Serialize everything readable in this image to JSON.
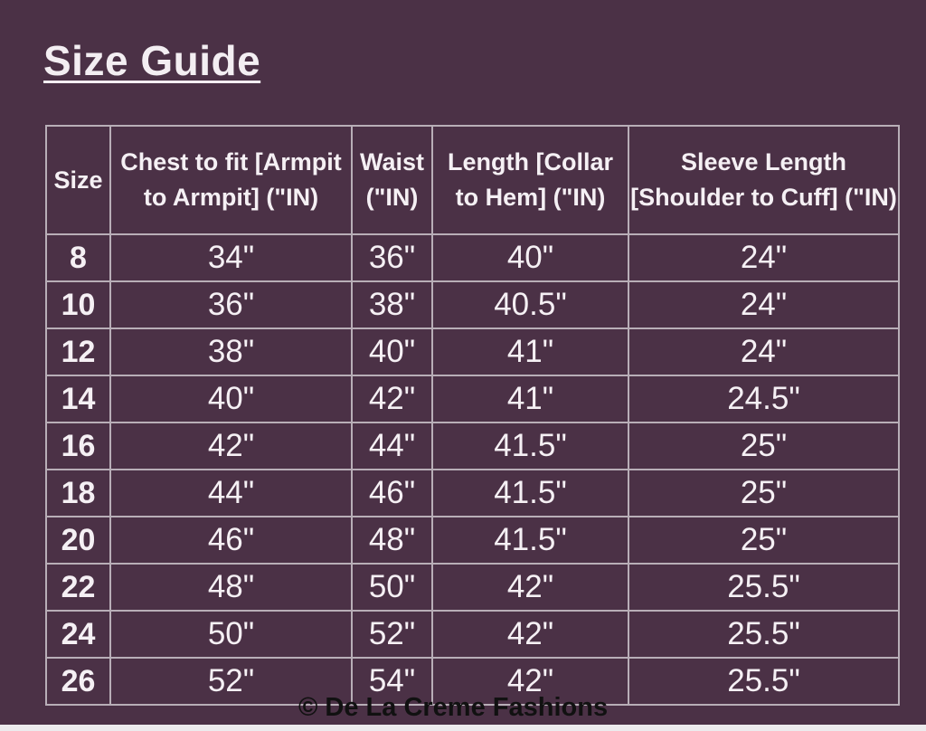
{
  "title": "Size Guide",
  "table": {
    "headers": [
      "Size",
      "Chest to fit [Armpit to Armpit] (\"IN)",
      "Waist (\"IN)",
      "Length [Collar to Hem] (\"IN)",
      "Sleeve Length [Shoulder to Cuff] (\"IN)"
    ],
    "rows": [
      [
        "8",
        "34\"",
        "36\"",
        "40\"",
        "24\""
      ],
      [
        "10",
        "36\"",
        "38\"",
        "40.5\"",
        "24\""
      ],
      [
        "12",
        "38\"",
        "40\"",
        "41\"",
        "24\""
      ],
      [
        "14",
        "40\"",
        "42\"",
        "41\"",
        "24.5\""
      ],
      [
        "16",
        "42\"",
        "44\"",
        "41.5\"",
        "25\""
      ],
      [
        "18",
        "44\"",
        "46\"",
        "41.5\"",
        "25\""
      ],
      [
        "20",
        "46\"",
        "48\"",
        "41.5\"",
        "25\""
      ],
      [
        "22",
        "48\"",
        "50\"",
        "42\"",
        "25.5\""
      ],
      [
        "24",
        "50\"",
        "52\"",
        "42\"",
        "25.5\""
      ],
      [
        "26",
        "52\"",
        "54\"",
        "42\"",
        "25.5\""
      ]
    ]
  },
  "credit": "© De La Creme Fashions",
  "colors": {
    "background": "#4b3146",
    "text": "#f5f0f4",
    "border": "#b8aeb7"
  }
}
